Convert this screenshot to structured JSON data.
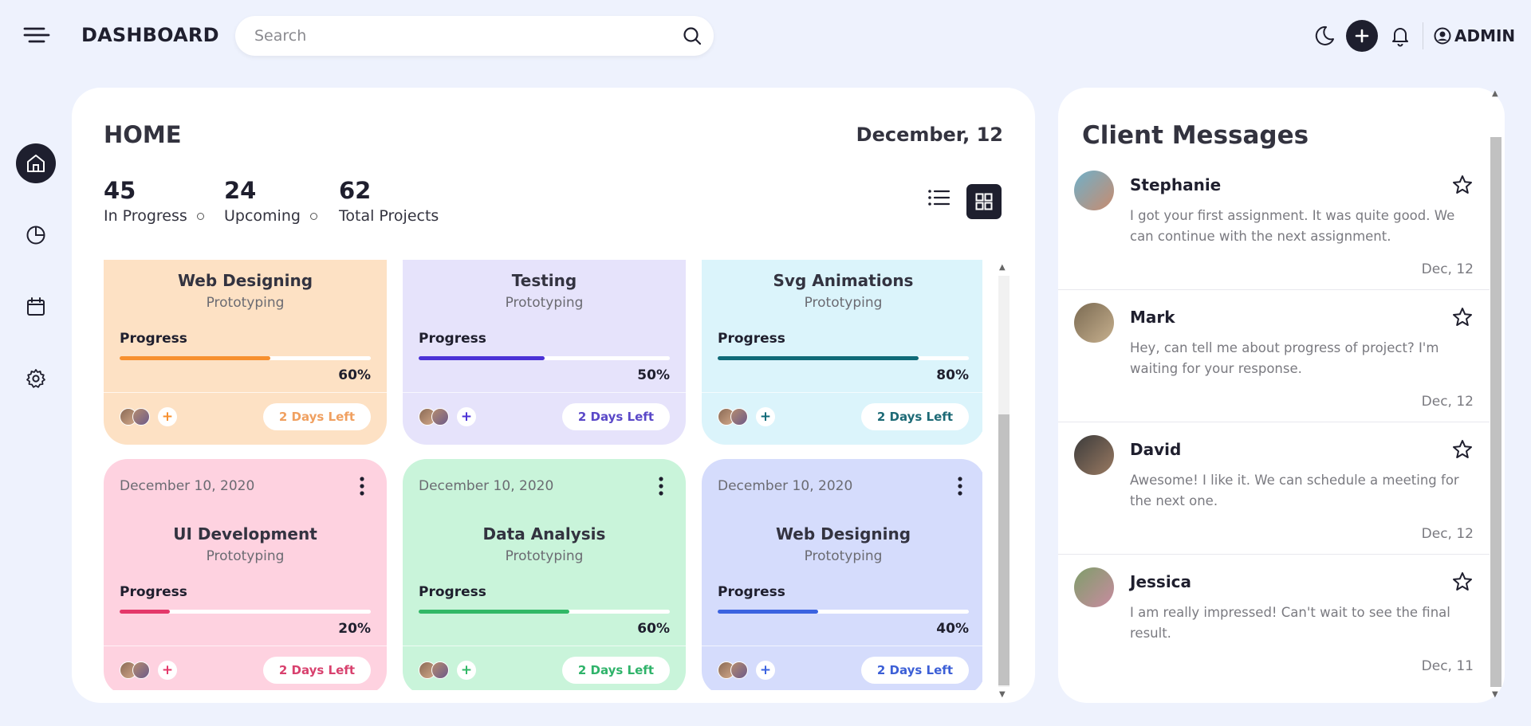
{
  "header": {
    "brand": "DASHBOARD",
    "search_placeholder": "Search",
    "user_label": "ADMIN"
  },
  "main": {
    "title": "HOME",
    "date": "December, 12",
    "stats": [
      {
        "value": "45",
        "label": "In Progress"
      },
      {
        "value": "24",
        "label": "Upcoming"
      },
      {
        "value": "62",
        "label": "Total Projects"
      }
    ],
    "progress_label": "Progress",
    "cards": [
      {
        "title": "Web Designing",
        "subtitle": "Prototyping",
        "progress": 60,
        "progress_text": "60%",
        "days_left": "2 Days Left",
        "bg": "#fde1c4",
        "accent": "#f7902f",
        "days_color": "#f0a060",
        "date": ""
      },
      {
        "title": "Testing",
        "subtitle": "Prototyping",
        "progress": 50,
        "progress_text": "50%",
        "days_left": "2 Days Left",
        "bg": "#e6e3fb",
        "accent": "#4b32d6",
        "days_color": "#5a48c8",
        "date": ""
      },
      {
        "title": "Svg Animations",
        "subtitle": "Prototyping",
        "progress": 80,
        "progress_text": "80%",
        "days_left": "2 Days Left",
        "bg": "#dbf4fb",
        "accent": "#0f6a78",
        "days_color": "#1d6a76",
        "date": ""
      },
      {
        "title": "UI Development",
        "subtitle": "Prototyping",
        "progress": 20,
        "progress_text": "20%",
        "days_left": "2 Days Left",
        "bg": "#fed2e0",
        "accent": "#e4386a",
        "days_color": "#d8416e",
        "date": "December 10, 2020"
      },
      {
        "title": "Data Analysis",
        "subtitle": "Prototyping",
        "progress": 60,
        "progress_text": "60%",
        "days_left": "2 Days Left",
        "bg": "#c9f4da",
        "accent": "#31b866",
        "days_color": "#2fb36a",
        "date": "December 10, 2020"
      },
      {
        "title": "Web Designing",
        "subtitle": "Prototyping",
        "progress": 40,
        "progress_text": "40%",
        "days_left": "2 Days Left",
        "bg": "#d5dcfc",
        "accent": "#3b63e0",
        "days_color": "#3c5fd6",
        "date": "December 10, 2020"
      }
    ]
  },
  "messages": {
    "title": "Client Messages",
    "items": [
      {
        "name": "Stephanie",
        "text": "I got your first assignment. It was quite good. We can continue with the next assignment.",
        "date": "Dec, 12"
      },
      {
        "name": "Mark",
        "text": "Hey, can tell me about progress of project? I'm waiting for your response.",
        "date": "Dec, 12"
      },
      {
        "name": "David",
        "text": "Awesome! I like it. We can schedule a meeting for the next one.",
        "date": "Dec, 12"
      },
      {
        "name": "Jessica",
        "text": "I am really impressed! Can't wait to see the final result.",
        "date": "Dec, 11"
      }
    ]
  }
}
